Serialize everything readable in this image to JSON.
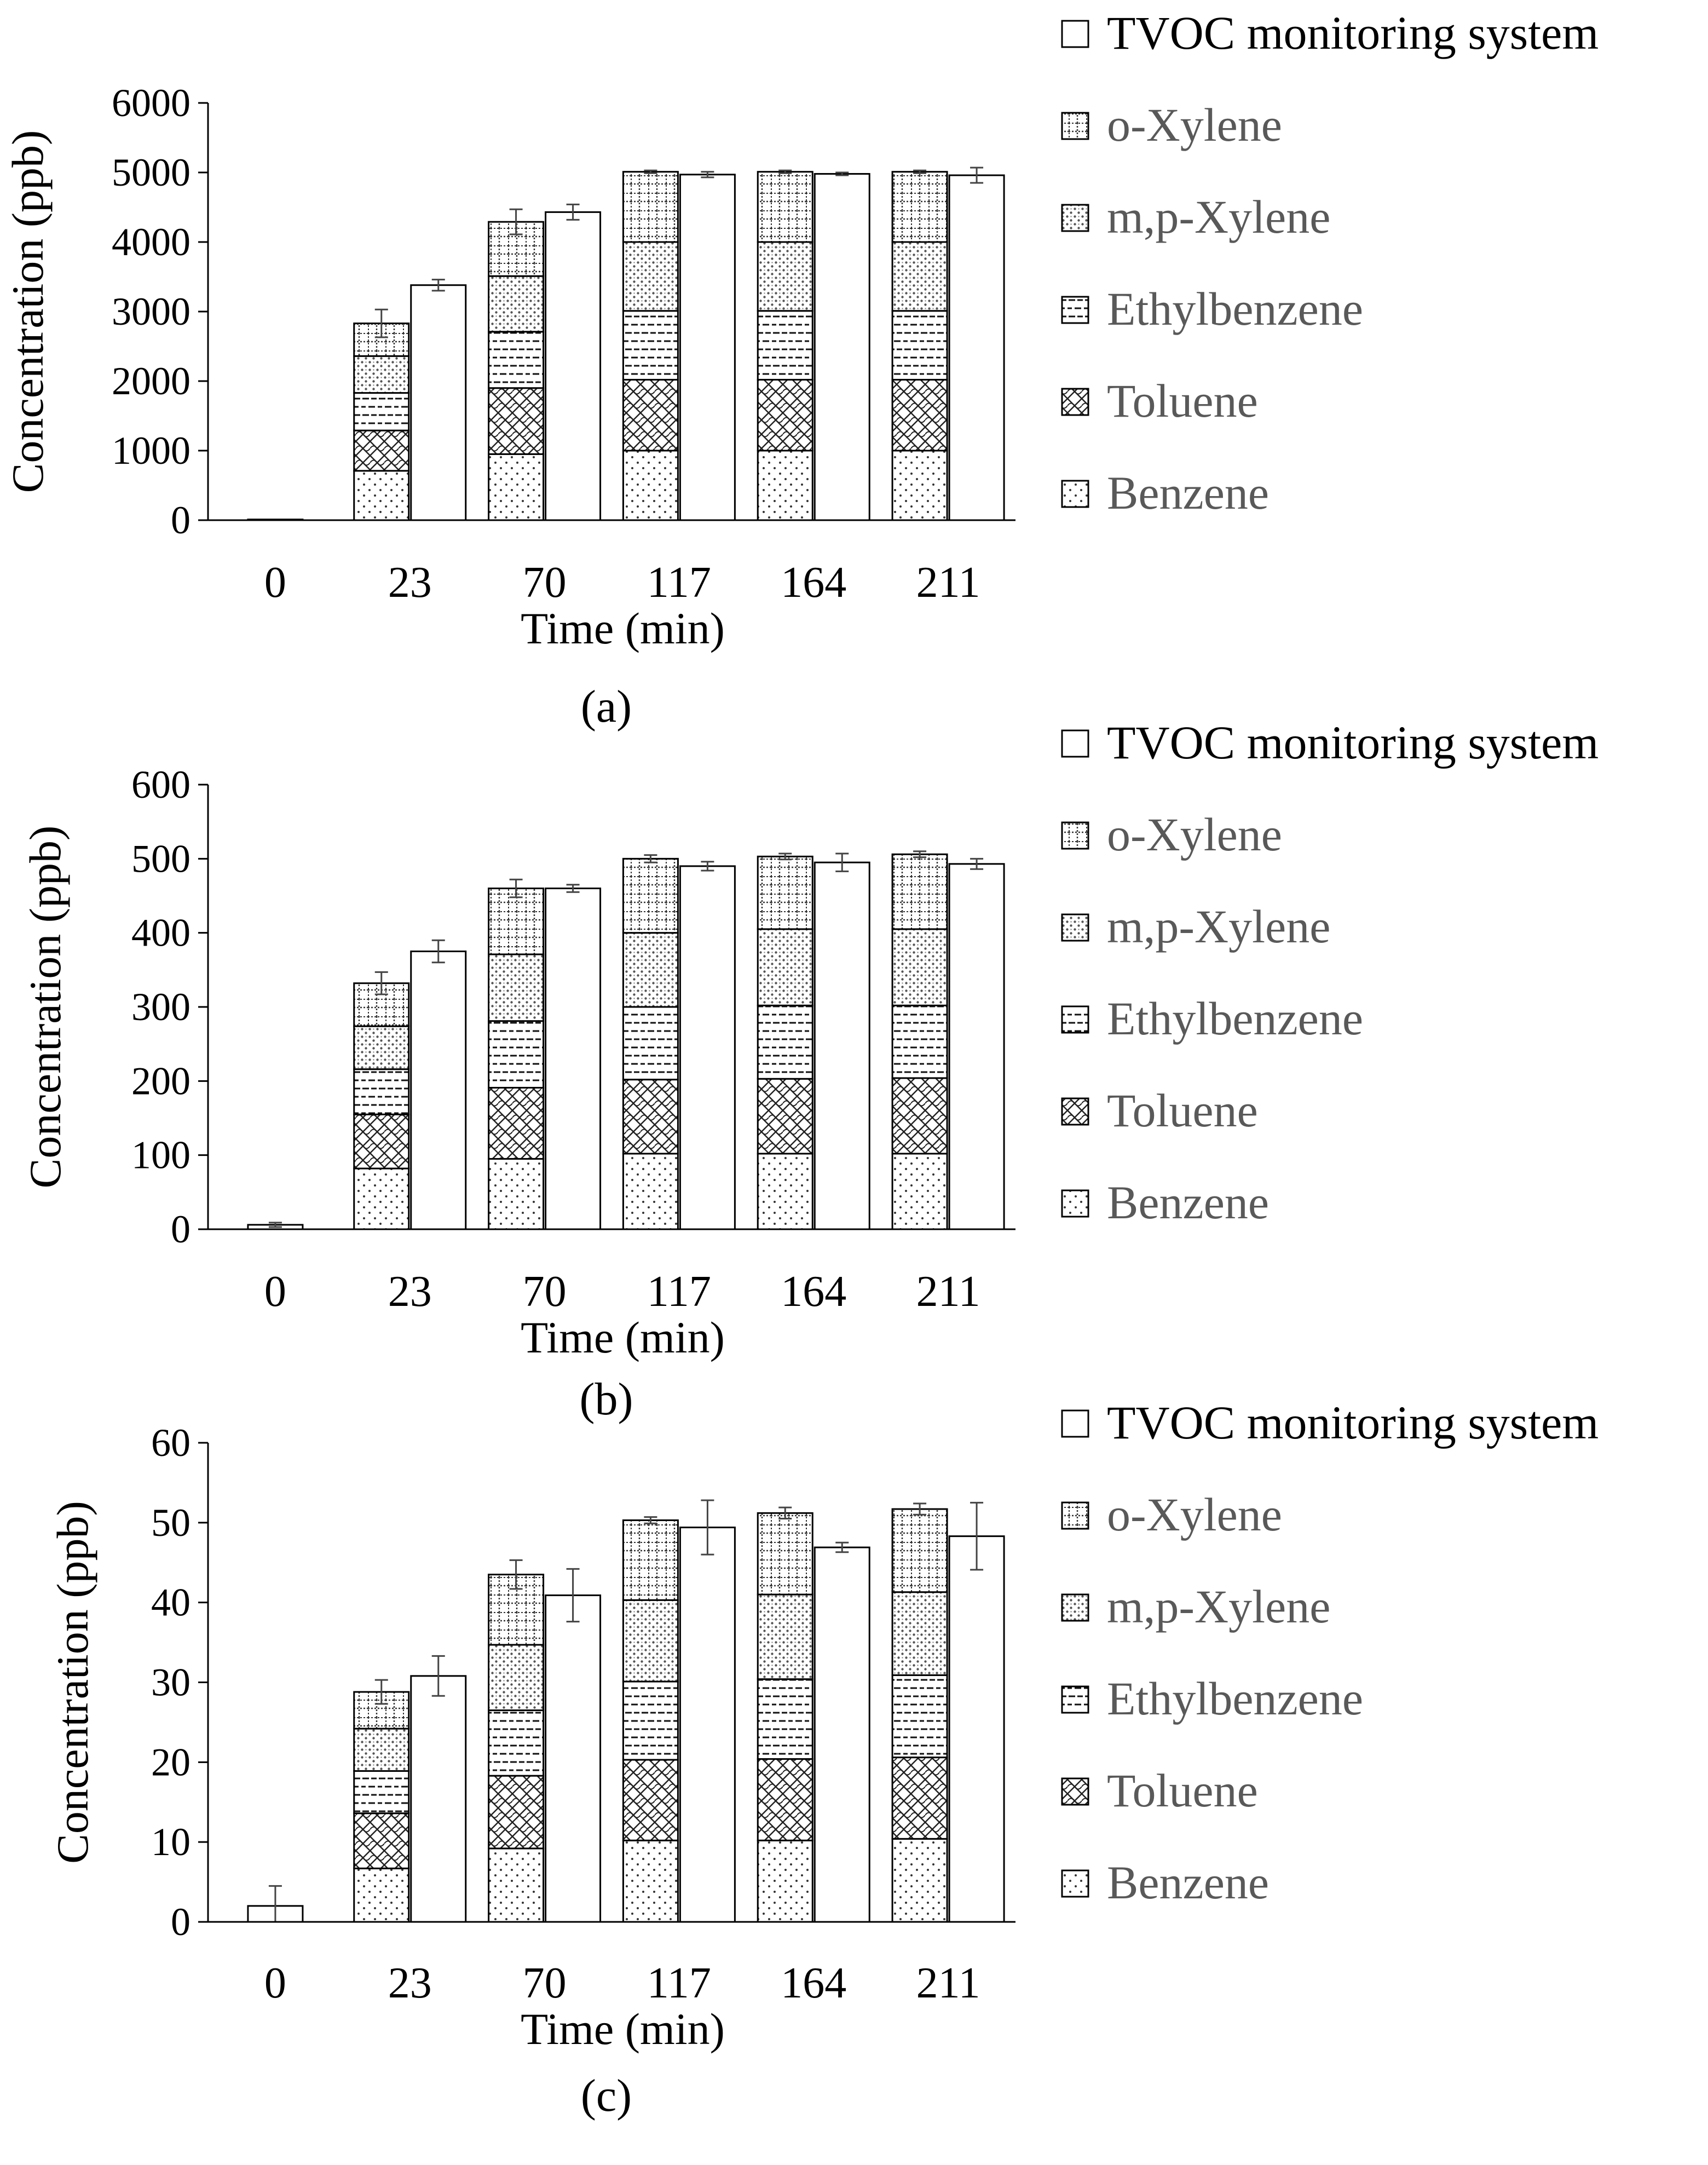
{
  "figure": {
    "series_names": [
      "Benzene",
      "Toluene",
      "Ethylbenzene",
      "m,p-Xylene",
      "o-Xylene"
    ],
    "tvoc_label": "TVOC monitoring system"
  },
  "chart_data": [
    {
      "type": "bar",
      "panel_label": "(a)",
      "categories": [
        "0",
        "23",
        "70",
        "117",
        "164",
        "211"
      ],
      "xlabel": "Time (min)",
      "ylabel": "Concentration (ppb)",
      "ylim": [
        0,
        6000
      ],
      "yticks": [
        "0",
        "1000",
        "2000",
        "3000",
        "4000",
        "5000",
        "6000"
      ],
      "legend": [
        "TVOC monitoring system",
        "o-Xylene",
        "m,p-Xylene",
        "Ethylbenzene",
        "Toluene",
        "Benzene"
      ],
      "stacked_series": [
        {
          "name": "Benzene",
          "values": [
            0,
            710,
            950,
            1000,
            1000,
            1000
          ]
        },
        {
          "name": "Toluene",
          "values": [
            0,
            580,
            950,
            1020,
            1020,
            1020
          ]
        },
        {
          "name": "Ethylbenzene",
          "values": [
            0,
            540,
            810,
            990,
            990,
            990
          ]
        },
        {
          "name": "m,p-Xylene",
          "values": [
            0,
            530,
            800,
            990,
            990,
            990
          ]
        },
        {
          "name": "o-Xylene",
          "values": [
            0,
            470,
            780,
            1010,
            1010,
            1010
          ]
        }
      ],
      "stacked_total_error": [
        0,
        200,
        180,
        20,
        20,
        20
      ],
      "tvoc": {
        "name": "TVOC monitoring system",
        "values": [
          10,
          3380,
          4430,
          4970,
          4980,
          4960
        ],
        "error": [
          0,
          80,
          110,
          40,
          20,
          110
        ]
      }
    },
    {
      "type": "bar",
      "panel_label": "(b)",
      "categories": [
        "0",
        "23",
        "70",
        "117",
        "164",
        "211"
      ],
      "xlabel": "Time (min)",
      "ylabel": "Concentration (ppb)",
      "ylim": [
        0,
        600
      ],
      "yticks": [
        "0",
        "100",
        "200",
        "300",
        "400",
        "500",
        "600"
      ],
      "legend": [
        "TVOC monitoring system",
        "o-Xylene",
        "m,p-Xylene",
        "Ethylbenzene",
        "Toluene",
        "Benzene"
      ],
      "stacked_series": [
        {
          "name": "Benzene",
          "values": [
            0,
            82,
            95,
            102,
            102,
            102
          ]
        },
        {
          "name": "Toluene",
          "values": [
            0,
            73,
            96,
            100,
            101,
            102
          ]
        },
        {
          "name": "Ethylbenzene",
          "values": [
            0,
            61,
            90,
            98,
            99,
            98
          ]
        },
        {
          "name": "m,p-Xylene",
          "values": [
            0,
            58,
            90,
            100,
            103,
            103
          ]
        },
        {
          "name": "o-Xylene",
          "values": [
            0,
            58,
            89,
            100,
            98,
            101
          ]
        }
      ],
      "stacked_total_error": [
        0,
        15,
        12,
        5,
        4,
        4
      ],
      "tvoc": {
        "name": "TVOC monitoring system",
        "values": [
          6,
          375,
          460,
          490,
          495,
          493
        ],
        "error": [
          3,
          15,
          5,
          6,
          12,
          7
        ]
      }
    },
    {
      "type": "bar",
      "panel_label": "(c)",
      "categories": [
        "0",
        "23",
        "70",
        "117",
        "164",
        "211"
      ],
      "xlabel": "Time (min)",
      "ylabel": "Concentration (ppb)",
      "ylim": [
        0,
        60
      ],
      "yticks": [
        "0",
        "10",
        "20",
        "30",
        "40",
        "50",
        "60"
      ],
      "legend": [
        "TVOC monitoring system",
        "o-Xylene",
        "m,p-Xylene",
        "Ethylbenzene",
        "Toluene",
        "Benzene"
      ],
      "stacked_series": [
        {
          "name": "Benzene",
          "values": [
            0,
            6.7,
            9.2,
            10.2,
            10.2,
            10.4
          ]
        },
        {
          "name": "Toluene",
          "values": [
            0,
            6.9,
            9.1,
            10.1,
            10.2,
            10.2
          ]
        },
        {
          "name": "Ethylbenzene",
          "values": [
            0,
            5.3,
            8.2,
            9.8,
            10.0,
            10.3
          ]
        },
        {
          "name": "m,p-Xylene",
          "values": [
            0,
            5.3,
            8.2,
            10.2,
            10.6,
            10.4
          ]
        },
        {
          "name": "o-Xylene",
          "values": [
            0,
            4.6,
            8.8,
            10.0,
            10.2,
            10.4
          ]
        }
      ],
      "stacked_total_error": [
        0,
        1.5,
        1.8,
        0.4,
        0.7,
        0.7
      ],
      "tvoc": {
        "name": "TVOC monitoring system",
        "values": [
          2,
          30.8,
          40.9,
          49.4,
          46.9,
          48.3
        ],
        "error": [
          2.5,
          2.5,
          3.3,
          3.4,
          0.6,
          4.2
        ]
      }
    }
  ]
}
